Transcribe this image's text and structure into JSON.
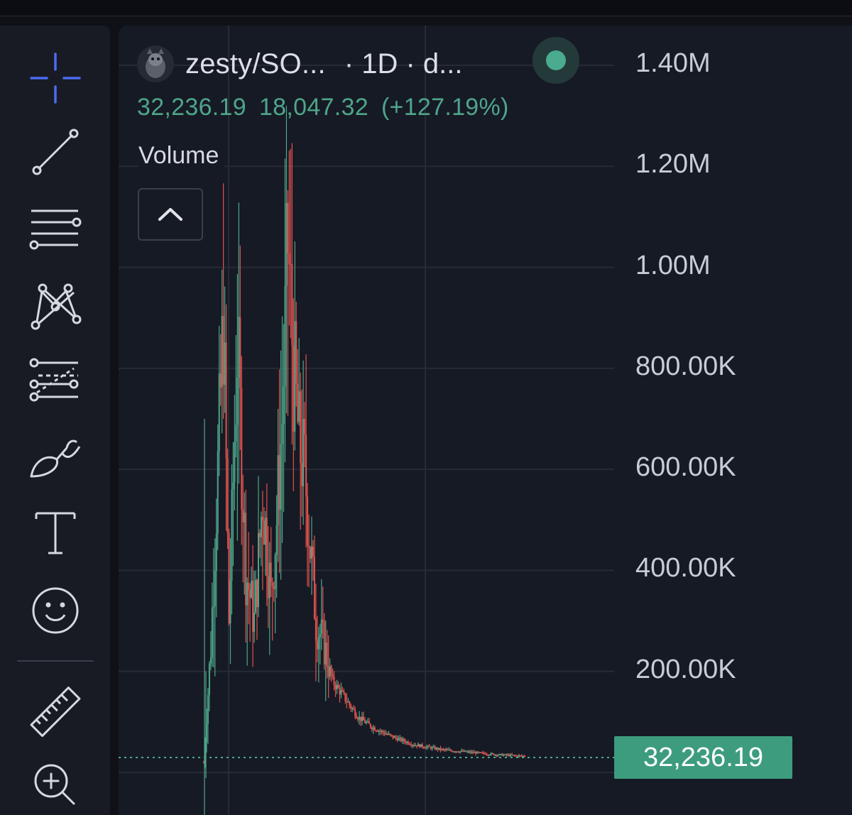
{
  "chart_header": {
    "symbol": "zesty/SO...",
    "interval": "· 1D · d...",
    "price": "32,236.19",
    "change": "18,047.32",
    "change_pct": "(+127.19%)",
    "volume_label": "Volume",
    "status_color": "#4bab8e"
  },
  "toolbar": {
    "tools": [
      {
        "name": "crosshair-icon",
        "active": true
      },
      {
        "name": "trend-line-icon"
      },
      {
        "name": "horizontal-lines-icon"
      },
      {
        "name": "pattern-icon"
      },
      {
        "name": "fib-retracement-icon"
      },
      {
        "name": "brush-icon"
      },
      {
        "name": "text-icon"
      },
      {
        "name": "emoji-icon"
      },
      {
        "name": "ruler-icon"
      },
      {
        "name": "zoom-in-icon"
      }
    ]
  },
  "colors": {
    "up": "#4ea58a",
    "down": "#e0524f",
    "accent": "#4b6cf2",
    "background": "#161a24"
  },
  "chart_data": {
    "type": "candlestick",
    "title": "zesty/SO...",
    "y_axis": {
      "labels": [
        "1.40M",
        "1.20M",
        "1.00M",
        "800.00K",
        "600.00K",
        "400.00K",
        "200.00K"
      ],
      "range": [
        0,
        1400000
      ]
    },
    "last_price": 32236.19,
    "last_price_label": "32,236.19",
    "approx_series": {
      "description_points": [
        [
          0,
          20000
        ],
        [
          5,
          250000
        ],
        [
          10,
          600000
        ],
        [
          14,
          900000
        ],
        [
          18,
          300000
        ],
        [
          24,
          850000
        ],
        [
          30,
          400000
        ],
        [
          36,
          300000
        ],
        [
          42,
          550000
        ],
        [
          48,
          350000
        ],
        [
          52,
          500000
        ],
        [
          56,
          700000
        ],
        [
          60,
          1050000
        ],
        [
          64,
          800000
        ],
        [
          68,
          650000
        ],
        [
          72,
          600000
        ],
        [
          76,
          450000
        ],
        [
          80,
          300000
        ],
        [
          86,
          250000
        ],
        [
          92,
          180000
        ],
        [
          100,
          150000
        ],
        [
          110,
          110000
        ],
        [
          120,
          90000
        ],
        [
          135,
          70000
        ],
        [
          150,
          55000
        ],
        [
          170,
          45000
        ],
        [
          190,
          40000
        ],
        [
          210,
          35000
        ],
        [
          230,
          32236
        ]
      ]
    }
  }
}
